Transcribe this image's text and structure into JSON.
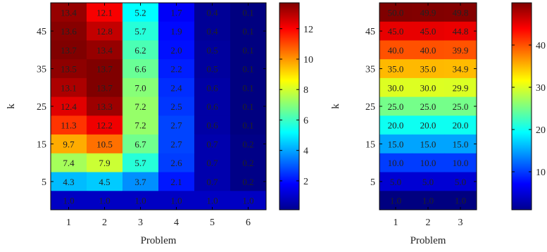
{
  "chart_data": [
    {
      "type": "heatmap",
      "xlabel": "Problem",
      "ylabel": "k",
      "x_categories": [
        "1",
        "2",
        "3",
        "4",
        "5",
        "6"
      ],
      "y_tick_labels": [
        "5",
        "15",
        "25",
        "35",
        "45"
      ],
      "y_tick_rows_from_bottom": [
        1,
        3,
        5,
        7,
        9
      ],
      "rows_top_to_bottom": [
        [
          "13.4",
          "12.1",
          "5.2",
          "1.7",
          "0.4",
          "0.1"
        ],
        [
          "13.6",
          "12.8",
          "5.7",
          "1.9",
          "0.4",
          "0.1"
        ],
        [
          "13.7",
          "13.4",
          "6.2",
          "2.0",
          "0.5",
          "0.1"
        ],
        [
          "13.5",
          "13.7",
          "6.6",
          "2.2",
          "0.5",
          "0.1"
        ],
        [
          "13.1",
          "13.7",
          "7.0",
          "2.4",
          "0.6",
          "0.1"
        ],
        [
          "12.4",
          "13.3",
          "7.2",
          "2.5",
          "0.6",
          "0.1"
        ],
        [
          "11.3",
          "12.2",
          "7.2",
          "2.7",
          "0.6",
          "0.1"
        ],
        [
          "9.7",
          "10.5",
          "6.7",
          "2.7",
          "0.7",
          "0.2"
        ],
        [
          "7.4",
          "7.9",
          "5.7",
          "2.6",
          "0.7",
          "0.2"
        ],
        [
          "4.3",
          "4.5",
          "3.7",
          "2.1",
          "0.7",
          "0.2"
        ],
        [
          "1.0",
          "1.0",
          "1.0",
          "1.0",
          "1.0",
          "1.0"
        ]
      ],
      "colorbar": {
        "min": 0.1,
        "max": 13.7,
        "ticks": [
          2,
          4,
          6,
          8,
          10,
          12
        ],
        "colormap": "jet"
      }
    },
    {
      "type": "heatmap",
      "xlabel": "Problem",
      "ylabel": "k",
      "x_categories": [
        "1",
        "2",
        "3"
      ],
      "y_tick_labels": [
        "5",
        "15",
        "25",
        "35",
        "45"
      ],
      "y_tick_rows_from_bottom": [
        1,
        3,
        5,
        7,
        9
      ],
      "rows_top_to_bottom": [
        [
          "50.0",
          "49.9",
          "49.8"
        ],
        [
          "45.0",
          "45.0",
          "44.8"
        ],
        [
          "40.0",
          "40.0",
          "39.9"
        ],
        [
          "35.0",
          "35.0",
          "34.9"
        ],
        [
          "30.0",
          "30.0",
          "29.9"
        ],
        [
          "25.0",
          "25.0",
          "25.0"
        ],
        [
          "20.0",
          "20.0",
          "20.0"
        ],
        [
          "15.0",
          "15.0",
          "15.0"
        ],
        [
          "10.0",
          "10.0",
          "10.0"
        ],
        [
          "5.0",
          "5.0",
          "5.0"
        ],
        [
          "1.0",
          "1.0",
          "1.0"
        ]
      ],
      "colorbar": {
        "min": 1.0,
        "max": 50.0,
        "ticks": [
          10,
          20,
          30,
          40
        ],
        "colormap": "jet"
      }
    }
  ]
}
